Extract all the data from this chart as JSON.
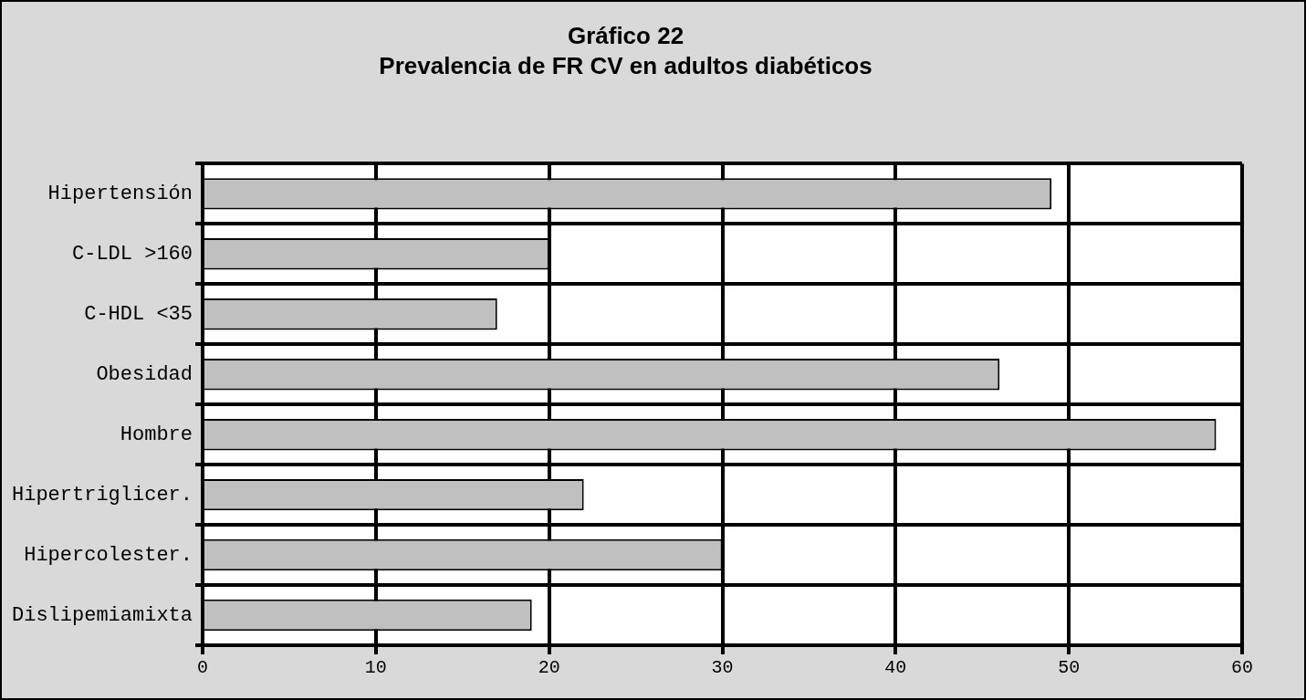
{
  "chart_data": {
    "type": "bar",
    "orientation": "horizontal",
    "title": "Gráfico 22",
    "subtitle": "Prevalencia de FR CV en adultos diabéticos",
    "categories": [
      "Hipertensión",
      "C-LDL >160",
      "C-HDL <35",
      "Obesidad",
      "Hombre",
      "Hipertriglicer.",
      "Hipercolester.",
      "Dislipemiamixta"
    ],
    "values": [
      49,
      20,
      17,
      46,
      58.5,
      22,
      30,
      19
    ],
    "color": "#c0c0c0",
    "xlim": [
      0,
      60
    ],
    "xticks": [
      0,
      10,
      20,
      30,
      40,
      50,
      60
    ],
    "grid": true,
    "legend": false
  }
}
